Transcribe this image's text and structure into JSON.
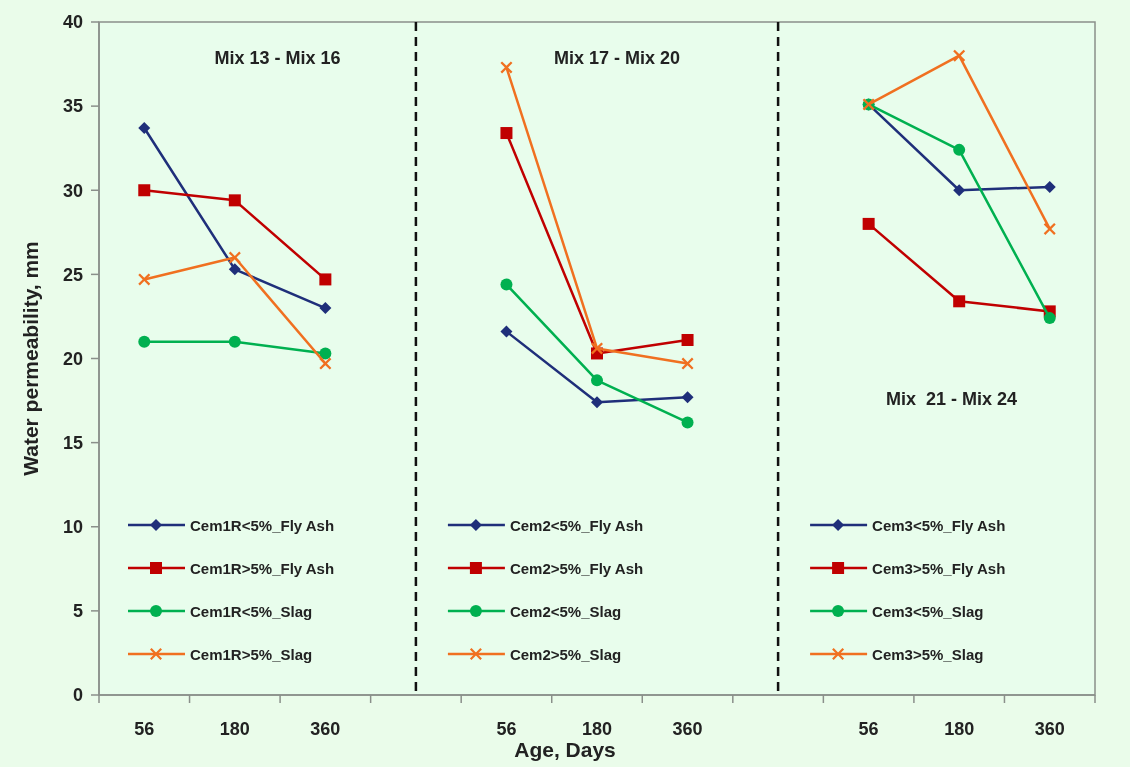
{
  "chart_data": [
    {
      "type": "line",
      "title": "Mix 13 - Mix 16",
      "ylabel": "Water permeability, mm",
      "categories": [
        "56",
        "180",
        "360"
      ],
      "ylim": [
        0,
        40
      ],
      "yticks": [
        0,
        5,
        10,
        15,
        20,
        25,
        30,
        35,
        40
      ],
      "legend": "bottom",
      "grid": false,
      "series": [
        {
          "name": "Cem1R<5%_Fly Ash",
          "color": "#1f2f7a",
          "marker": "diamond",
          "values": [
            33.7,
            25.3,
            23.0
          ]
        },
        {
          "name": "Cem1R>5%_Fly Ash",
          "color": "#c00000",
          "marker": "square",
          "values": [
            30.0,
            29.4,
            24.7
          ]
        },
        {
          "name": "Cem1R<5%_Slag",
          "color": "#00b050",
          "marker": "circle",
          "values": [
            21.0,
            21.0,
            20.3
          ]
        },
        {
          "name": "Cem1R>5%_Slag",
          "color": "#f07020",
          "marker": "cross",
          "values": [
            24.7,
            26.0,
            19.7
          ]
        }
      ]
    },
    {
      "type": "line",
      "title": "Mix 17 - Mix 20",
      "xlabel": "Age, Days",
      "categories": [
        "56",
        "180",
        "360"
      ],
      "ylim": [
        0,
        40
      ],
      "yticks": [
        0,
        5,
        10,
        15,
        20,
        25,
        30,
        35,
        40
      ],
      "tick_labels": "x",
      "legend": "bottom",
      "grid": false,
      "series": [
        {
          "name": "Cem2<5%_Fly Ash",
          "color": "#1f2f7a",
          "marker": "diamond",
          "values": [
            21.6,
            17.4,
            17.7
          ]
        },
        {
          "name": "Cem2>5%_Fly Ash",
          "color": "#c00000",
          "marker": "square",
          "values": [
            33.4,
            20.3,
            21.1
          ]
        },
        {
          "name": "Cem2<5%_Slag",
          "color": "#00b050",
          "marker": "circle",
          "values": [
            24.4,
            18.7,
            16.2
          ]
        },
        {
          "name": "Cem2>5%_Slag",
          "color": "#f07020",
          "marker": "cross",
          "values": [
            37.3,
            20.6,
            19.7
          ]
        }
      ]
    },
    {
      "type": "line",
      "annotations": [
        "Mix  21 - Mix 24"
      ],
      "categories": [
        "56",
        "180",
        "360"
      ],
      "ylim": [
        0,
        40
      ],
      "yticks": [
        0,
        5,
        10,
        15,
        20,
        25,
        30,
        35,
        40
      ],
      "tick_labels": "x",
      "legend": "bottom",
      "grid": false,
      "series": [
        {
          "name": "Cem3<5%_Fly Ash",
          "color": "#1f2f7a",
          "marker": "diamond",
          "values": [
            35.1,
            30.0,
            30.2
          ]
        },
        {
          "name": "Cem3>5%_Fly Ash",
          "color": "#c00000",
          "marker": "square",
          "values": [
            28.0,
            23.4,
            22.8
          ]
        },
        {
          "name": "Cem3<5%_Slag",
          "color": "#00b050",
          "marker": "circle",
          "values": [
            35.1,
            32.4,
            22.4
          ]
        },
        {
          "name": "Cem3>5%_Slag",
          "color": "#f07020",
          "marker": "cross",
          "values": [
            35.1,
            38.0,
            27.7
          ]
        }
      ]
    }
  ]
}
